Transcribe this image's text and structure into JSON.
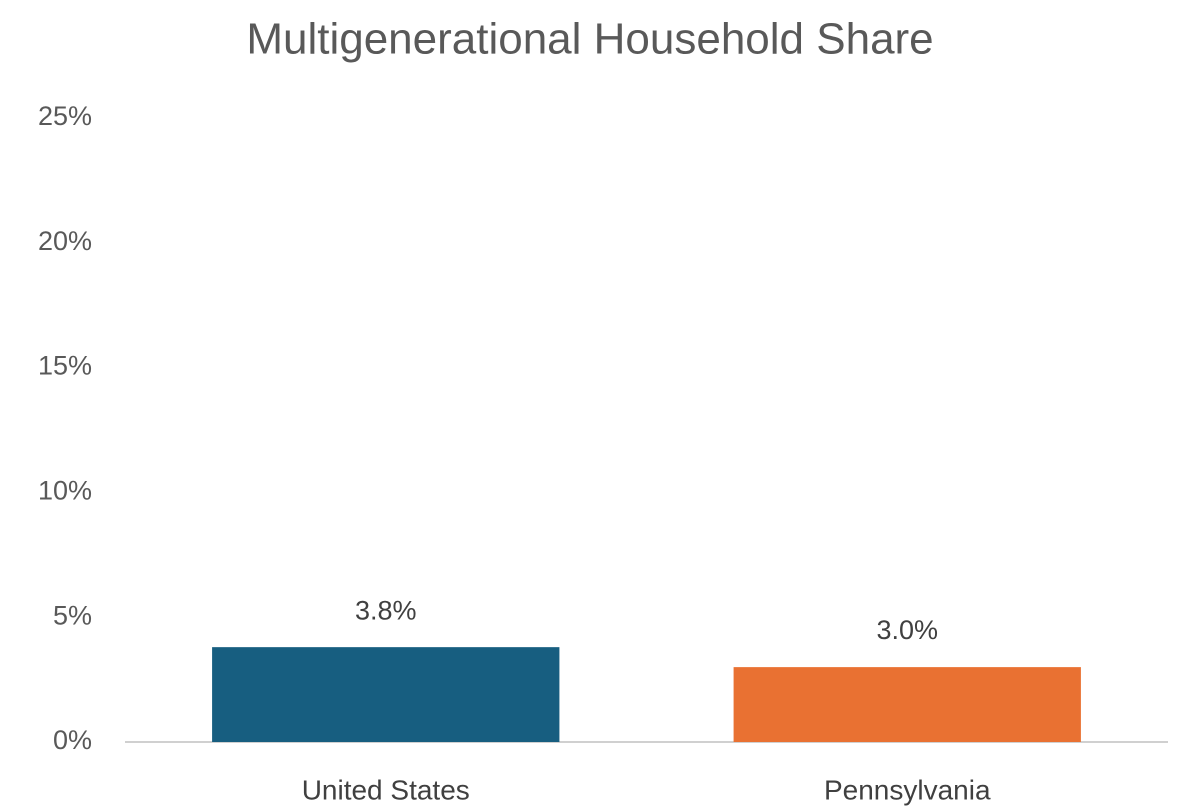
{
  "chart_data": {
    "type": "bar",
    "title": "Multigenerational Household Share",
    "categories": [
      "United States",
      "Pennsylvania"
    ],
    "values": [
      3.8,
      3.0
    ],
    "value_labels": [
      "3.8%",
      "3.0%"
    ],
    "colors": [
      "#175e80",
      "#e97132"
    ],
    "ylim": [
      0,
      25
    ],
    "yticks": [
      {
        "value": 0,
        "label": "0%"
      },
      {
        "value": 5,
        "label": "5%"
      },
      {
        "value": 10,
        "label": "10%"
      },
      {
        "value": 15,
        "label": "15%"
      },
      {
        "value": 20,
        "label": "20%"
      },
      {
        "value": 25,
        "label": "25%"
      }
    ],
    "grid": false
  }
}
